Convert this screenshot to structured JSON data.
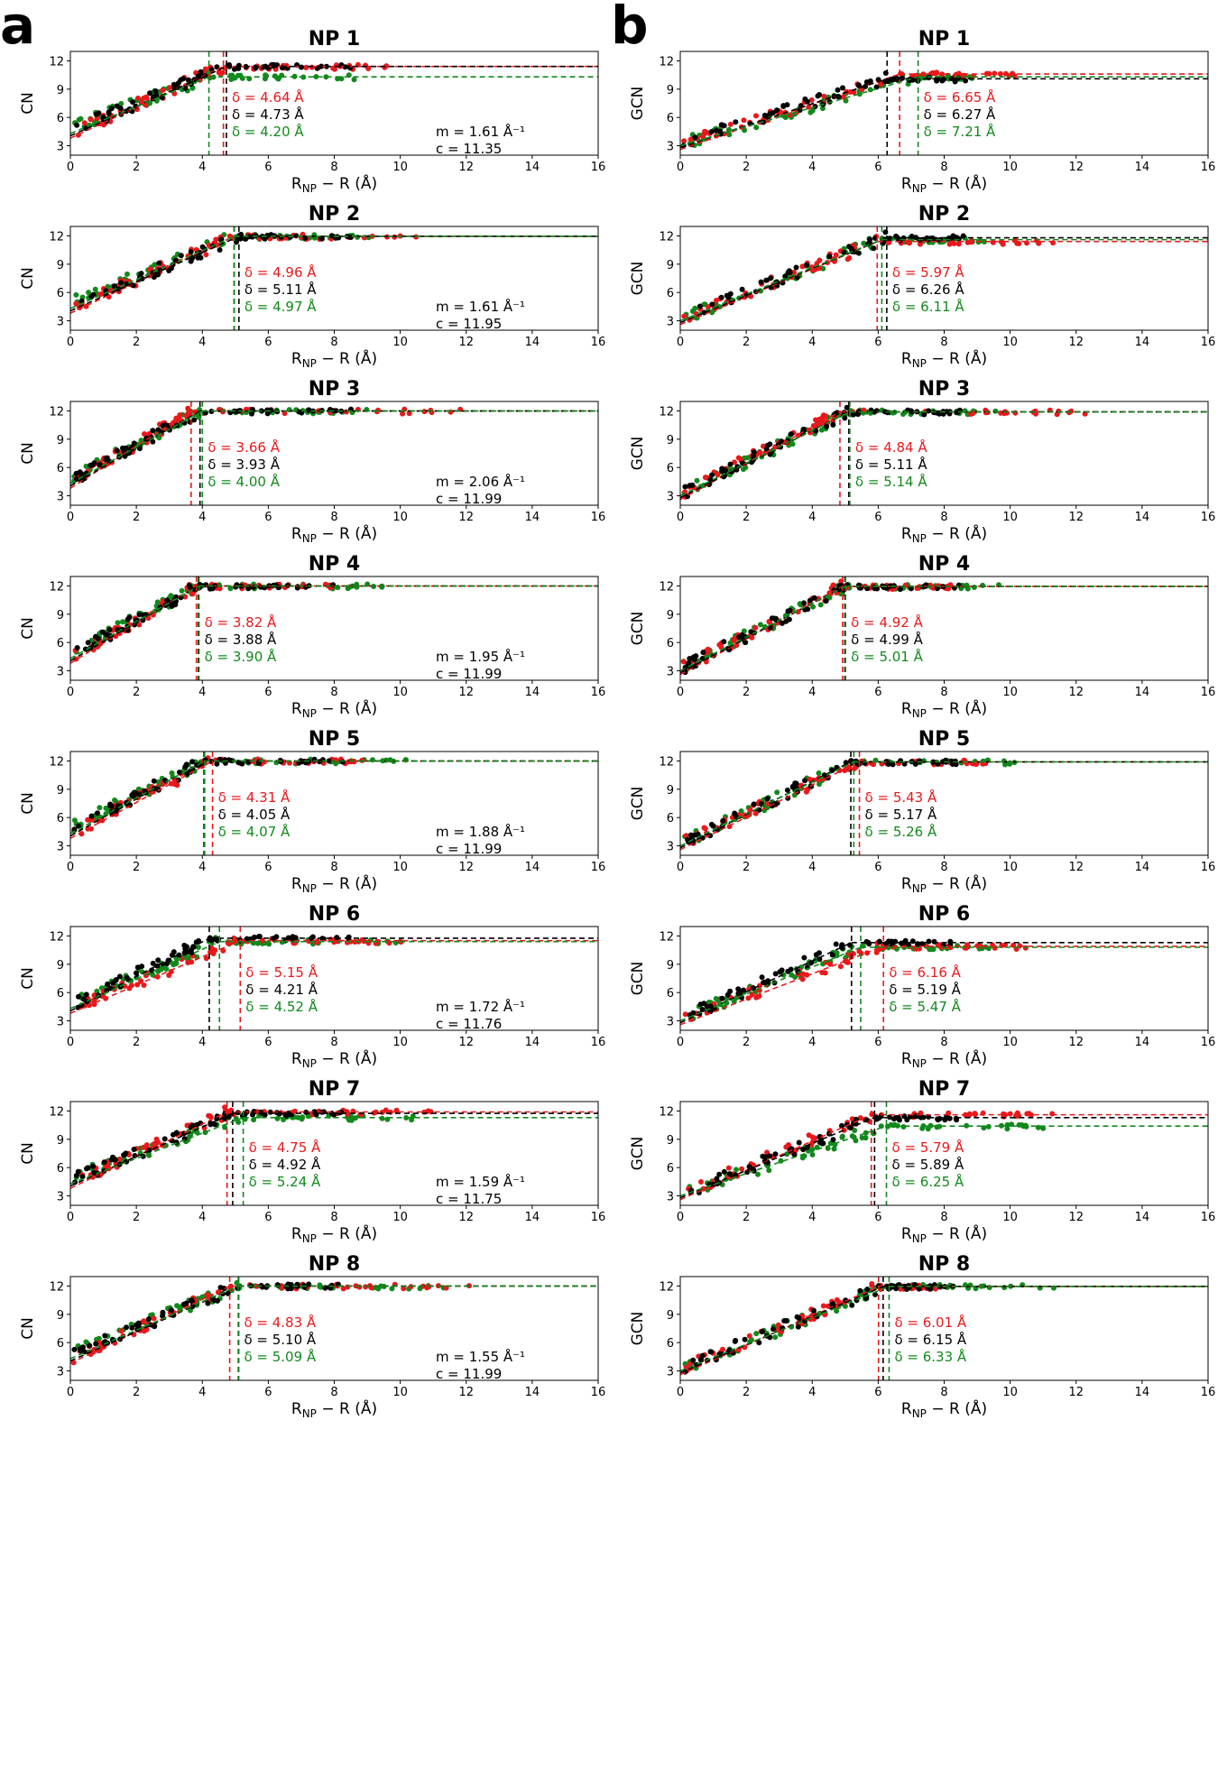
{
  "panel_labels": [
    "a",
    "b"
  ],
  "colors": {
    "red": "#e8191c",
    "black": "#000000",
    "green": "#12891c"
  },
  "chart_data": [
    {
      "type": "scatter",
      "panel": "a",
      "title": "NP 1",
      "ylabel": "CN",
      "xlabel": "R_NP − R (Å)",
      "xlim": [
        0,
        16
      ],
      "ylim": [
        2,
        13
      ],
      "xticks": [
        0,
        2,
        4,
        6,
        8,
        10,
        12,
        14,
        16
      ],
      "yticks": [
        3,
        6,
        9,
        12
      ],
      "series": [
        {
          "color": "red",
          "delta": 4.64,
          "plateau": 11.4
        },
        {
          "color": "black",
          "delta": 4.73,
          "plateau": 11.4
        },
        {
          "color": "green",
          "delta": 4.2,
          "plateau": 10.3
        }
      ],
      "annotations": {
        "delta": [
          "δ = 4.64 Å",
          "δ = 4.73 Å",
          "δ = 4.20 Å"
        ],
        "m": "m = 1.61 Å⁻¹",
        "c": "c = 11.35"
      },
      "m": 1.61,
      "c": 11.35
    },
    {
      "type": "scatter",
      "panel": "b",
      "title": "NP 1",
      "ylabel": "GCN",
      "xlabel": "R_NP − R (Å)",
      "xlim": [
        0,
        16
      ],
      "ylim": [
        2,
        13
      ],
      "xticks": [
        0,
        2,
        4,
        6,
        8,
        10,
        12,
        14,
        16
      ],
      "yticks": [
        3,
        6,
        9,
        12
      ],
      "series": [
        {
          "color": "red",
          "delta": 6.65,
          "plateau": 10.6
        },
        {
          "color": "black",
          "delta": 6.27,
          "plateau": 10.1
        },
        {
          "color": "green",
          "delta": 7.21,
          "plateau": 10.3
        }
      ],
      "annotations": {
        "delta": [
          "δ = 6.65 Å",
          "δ = 6.27 Å",
          "δ = 7.21 Å"
        ]
      }
    },
    {
      "type": "scatter",
      "panel": "a",
      "title": "NP 2",
      "ylabel": "CN",
      "xlabel": "R_NP − R (Å)",
      "xlim": [
        0,
        16
      ],
      "ylim": [
        2,
        13
      ],
      "xticks": [
        0,
        2,
        4,
        6,
        8,
        10,
        12,
        14,
        16
      ],
      "yticks": [
        3,
        6,
        9,
        12
      ],
      "series": [
        {
          "color": "red",
          "delta": 4.96,
          "plateau": 11.95
        },
        {
          "color": "black",
          "delta": 5.11,
          "plateau": 11.95
        },
        {
          "color": "green",
          "delta": 4.97,
          "plateau": 11.95
        }
      ],
      "annotations": {
        "delta": [
          "δ = 4.96 Å",
          "δ = 5.11 Å",
          "δ = 4.97 Å"
        ],
        "m": "m = 1.61 Å⁻¹",
        "c": "c = 11.95"
      },
      "m": 1.61,
      "c": 11.95
    },
    {
      "type": "scatter",
      "panel": "b",
      "title": "NP 2",
      "ylabel": "GCN",
      "xlabel": "R_NP − R (Å)",
      "xlim": [
        0,
        16
      ],
      "ylim": [
        2,
        13
      ],
      "xticks": [
        0,
        2,
        4,
        6,
        8,
        10,
        12,
        14,
        16
      ],
      "yticks": [
        3,
        6,
        9,
        12
      ],
      "series": [
        {
          "color": "red",
          "delta": 5.97,
          "plateau": 11.4
        },
        {
          "color": "black",
          "delta": 6.26,
          "plateau": 11.8
        },
        {
          "color": "green",
          "delta": 6.11,
          "plateau": 11.6
        }
      ],
      "annotations": {
        "delta": [
          "δ = 5.97 Å",
          "δ = 6.26 Å",
          "δ = 6.11 Å"
        ]
      }
    },
    {
      "type": "scatter",
      "panel": "a",
      "title": "NP 3",
      "ylabel": "CN",
      "xlabel": "R_NP − R (Å)",
      "xlim": [
        0,
        16
      ],
      "ylim": [
        2,
        13
      ],
      "xticks": [
        0,
        2,
        4,
        6,
        8,
        10,
        12,
        14,
        16
      ],
      "yticks": [
        3,
        6,
        9,
        12
      ],
      "series": [
        {
          "color": "red",
          "delta": 3.66,
          "plateau": 11.99
        },
        {
          "color": "black",
          "delta": 3.93,
          "plateau": 11.99
        },
        {
          "color": "green",
          "delta": 4.0,
          "plateau": 11.99
        }
      ],
      "annotations": {
        "delta": [
          "δ = 3.66 Å",
          "δ = 3.93 Å",
          "δ = 4.00 Å"
        ],
        "m": "m = 2.06 Å⁻¹",
        "c": "c = 11.99"
      },
      "m": 2.06,
      "c": 11.99
    },
    {
      "type": "scatter",
      "panel": "b",
      "title": "NP 3",
      "ylabel": "GCN",
      "xlabel": "R_NP − R (Å)",
      "xlim": [
        0,
        16
      ],
      "ylim": [
        2,
        13
      ],
      "xticks": [
        0,
        2,
        4,
        6,
        8,
        10,
        12,
        14,
        16
      ],
      "yticks": [
        3,
        6,
        9,
        12
      ],
      "series": [
        {
          "color": "red",
          "delta": 4.84,
          "plateau": 11.9
        },
        {
          "color": "black",
          "delta": 5.11,
          "plateau": 11.9
        },
        {
          "color": "green",
          "delta": 5.14,
          "plateau": 11.9
        }
      ],
      "annotations": {
        "delta": [
          "δ = 4.84 Å",
          "δ = 5.11 Å",
          "δ = 5.14 Å"
        ]
      }
    },
    {
      "type": "scatter",
      "panel": "a",
      "title": "NP 4",
      "ylabel": "CN",
      "xlabel": "R_NP − R (Å)",
      "xlim": [
        0,
        16
      ],
      "ylim": [
        2,
        13
      ],
      "xticks": [
        0,
        2,
        4,
        6,
        8,
        10,
        12,
        14,
        16
      ],
      "yticks": [
        3,
        6,
        9,
        12
      ],
      "series": [
        {
          "color": "red",
          "delta": 3.82,
          "plateau": 11.99
        },
        {
          "color": "black",
          "delta": 3.88,
          "plateau": 11.99
        },
        {
          "color": "green",
          "delta": 3.9,
          "plateau": 11.99
        }
      ],
      "annotations": {
        "delta": [
          "δ = 3.82 Å",
          "δ = 3.88 Å",
          "δ = 3.90 Å"
        ],
        "m": "m = 1.95 Å⁻¹",
        "c": "c = 11.99"
      },
      "m": 1.95,
      "c": 11.99
    },
    {
      "type": "scatter",
      "panel": "b",
      "title": "NP 4",
      "ylabel": "GCN",
      "xlabel": "R_NP − R (Å)",
      "xlim": [
        0,
        16
      ],
      "ylim": [
        2,
        13
      ],
      "xticks": [
        0,
        2,
        4,
        6,
        8,
        10,
        12,
        14,
        16
      ],
      "yticks": [
        3,
        6,
        9,
        12
      ],
      "series": [
        {
          "color": "red",
          "delta": 4.92,
          "plateau": 11.95
        },
        {
          "color": "black",
          "delta": 4.99,
          "plateau": 11.95
        },
        {
          "color": "green",
          "delta": 5.01,
          "plateau": 11.95
        }
      ],
      "annotations": {
        "delta": [
          "δ = 4.92 Å",
          "δ = 4.99 Å",
          "δ = 5.01 Å"
        ]
      }
    },
    {
      "type": "scatter",
      "panel": "a",
      "title": "NP 5",
      "ylabel": "CN",
      "xlabel": "R_NP − R (Å)",
      "xlim": [
        0,
        16
      ],
      "ylim": [
        2,
        13
      ],
      "xticks": [
        0,
        2,
        4,
        6,
        8,
        10,
        12,
        14,
        16
      ],
      "yticks": [
        3,
        6,
        9,
        12
      ],
      "series": [
        {
          "color": "red",
          "delta": 4.31,
          "plateau": 11.99
        },
        {
          "color": "black",
          "delta": 4.05,
          "plateau": 11.99
        },
        {
          "color": "green",
          "delta": 4.07,
          "plateau": 11.99
        }
      ],
      "annotations": {
        "delta": [
          "δ = 4.31 Å",
          "δ = 4.05 Å",
          "δ = 4.07 Å"
        ],
        "m": "m = 1.88 Å⁻¹",
        "c": "c = 11.99"
      },
      "m": 1.88,
      "c": 11.99
    },
    {
      "type": "scatter",
      "panel": "b",
      "title": "NP 5",
      "ylabel": "GCN",
      "xlabel": "R_NP − R (Å)",
      "xlim": [
        0,
        16
      ],
      "ylim": [
        2,
        13
      ],
      "xticks": [
        0,
        2,
        4,
        6,
        8,
        10,
        12,
        14,
        16
      ],
      "yticks": [
        3,
        6,
        9,
        12
      ],
      "series": [
        {
          "color": "red",
          "delta": 5.43,
          "plateau": 11.9
        },
        {
          "color": "black",
          "delta": 5.17,
          "plateau": 11.9
        },
        {
          "color": "green",
          "delta": 5.26,
          "plateau": 11.9
        }
      ],
      "annotations": {
        "delta": [
          "δ = 5.43 Å",
          "δ = 5.17 Å",
          "δ = 5.26 Å"
        ]
      }
    },
    {
      "type": "scatter",
      "panel": "a",
      "title": "NP 6",
      "ylabel": "CN",
      "xlabel": "R_NP − R (Å)",
      "xlim": [
        0,
        16
      ],
      "ylim": [
        2,
        13
      ],
      "xticks": [
        0,
        2,
        4,
        6,
        8,
        10,
        12,
        14,
        16
      ],
      "yticks": [
        3,
        6,
        9,
        12
      ],
      "series": [
        {
          "color": "red",
          "delta": 5.15,
          "plateau": 11.5
        },
        {
          "color": "black",
          "delta": 4.21,
          "plateau": 11.76
        },
        {
          "color": "green",
          "delta": 4.52,
          "plateau": 11.4
        }
      ],
      "annotations": {
        "delta": [
          "δ = 5.15 Å",
          "δ = 4.21 Å",
          "δ = 4.52 Å"
        ],
        "m": "m = 1.72 Å⁻¹",
        "c": "c = 11.76"
      },
      "m": 1.72,
      "c": 11.76
    },
    {
      "type": "scatter",
      "panel": "b",
      "title": "NP 6",
      "ylabel": "GCN",
      "xlabel": "R_NP − R (Å)",
      "xlim": [
        0,
        16
      ],
      "ylim": [
        2,
        13
      ],
      "xticks": [
        0,
        2,
        4,
        6,
        8,
        10,
        12,
        14,
        16
      ],
      "yticks": [
        3,
        6,
        9,
        12
      ],
      "series": [
        {
          "color": "red",
          "delta": 6.16,
          "plateau": 10.9
        },
        {
          "color": "black",
          "delta": 5.19,
          "plateau": 11.3
        },
        {
          "color": "green",
          "delta": 5.47,
          "plateau": 10.8
        }
      ],
      "annotations": {
        "delta": [
          "δ = 6.16 Å",
          "δ = 5.19 Å",
          "δ = 5.47 Å"
        ]
      }
    },
    {
      "type": "scatter",
      "panel": "a",
      "title": "NP 7",
      "ylabel": "CN",
      "xlabel": "R_NP − R (Å)",
      "xlim": [
        0,
        16
      ],
      "ylim": [
        2,
        13
      ],
      "xticks": [
        0,
        2,
        4,
        6,
        8,
        10,
        12,
        14,
        16
      ],
      "yticks": [
        3,
        6,
        9,
        12
      ],
      "series": [
        {
          "color": "red",
          "delta": 4.75,
          "plateau": 11.9
        },
        {
          "color": "black",
          "delta": 4.92,
          "plateau": 11.75
        },
        {
          "color": "green",
          "delta": 5.24,
          "plateau": 11.3
        }
      ],
      "annotations": {
        "delta": [
          "δ = 4.75 Å",
          "δ = 4.92 Å",
          "δ = 5.24 Å"
        ],
        "m": "m = 1.59 Å⁻¹",
        "c": "c = 11.75"
      },
      "m": 1.59,
      "c": 11.75
    },
    {
      "type": "scatter",
      "panel": "b",
      "title": "NP 7",
      "ylabel": "GCN",
      "xlabel": "R_NP − R (Å)",
      "xlim": [
        0,
        16
      ],
      "ylim": [
        2,
        13
      ],
      "xticks": [
        0,
        2,
        4,
        6,
        8,
        10,
        12,
        14,
        16
      ],
      "yticks": [
        3,
        6,
        9,
        12
      ],
      "series": [
        {
          "color": "red",
          "delta": 5.79,
          "plateau": 11.6
        },
        {
          "color": "black",
          "delta": 5.89,
          "plateau": 11.3
        },
        {
          "color": "green",
          "delta": 6.25,
          "plateau": 10.4
        }
      ],
      "annotations": {
        "delta": [
          "δ = 5.79 Å",
          "δ = 5.89 Å",
          "δ = 6.25 Å"
        ]
      }
    },
    {
      "type": "scatter",
      "panel": "a",
      "title": "NP 8",
      "ylabel": "CN",
      "xlabel": "R_NP − R (Å)",
      "xlim": [
        0,
        16
      ],
      "ylim": [
        2,
        13
      ],
      "xticks": [
        0,
        2,
        4,
        6,
        8,
        10,
        12,
        14,
        16
      ],
      "yticks": [
        3,
        6,
        9,
        12
      ],
      "series": [
        {
          "color": "red",
          "delta": 4.83,
          "plateau": 11.99
        },
        {
          "color": "black",
          "delta": 5.1,
          "plateau": 11.99
        },
        {
          "color": "green",
          "delta": 5.09,
          "plateau": 11.99
        }
      ],
      "annotations": {
        "delta": [
          "δ = 4.83 Å",
          "δ = 5.10 Å",
          "δ = 5.09 Å"
        ],
        "m": "m = 1.55 Å⁻¹",
        "c": "c = 11.99"
      },
      "m": 1.55,
      "c": 11.99
    },
    {
      "type": "scatter",
      "panel": "b",
      "title": "NP 8",
      "ylabel": "GCN",
      "xlabel": "R_NP − R (Å)",
      "xlim": [
        0,
        16
      ],
      "ylim": [
        2,
        13
      ],
      "xticks": [
        0,
        2,
        4,
        6,
        8,
        10,
        12,
        14,
        16
      ],
      "yticks": [
        3,
        6,
        9,
        12
      ],
      "series": [
        {
          "color": "red",
          "delta": 6.01,
          "plateau": 11.95
        },
        {
          "color": "black",
          "delta": 6.15,
          "plateau": 11.95
        },
        {
          "color": "green",
          "delta": 6.33,
          "plateau": 11.95
        }
      ],
      "annotations": {
        "delta": [
          "δ = 6.01 Å",
          "δ = 6.15 Å",
          "δ = 6.33 Å"
        ]
      }
    }
  ]
}
